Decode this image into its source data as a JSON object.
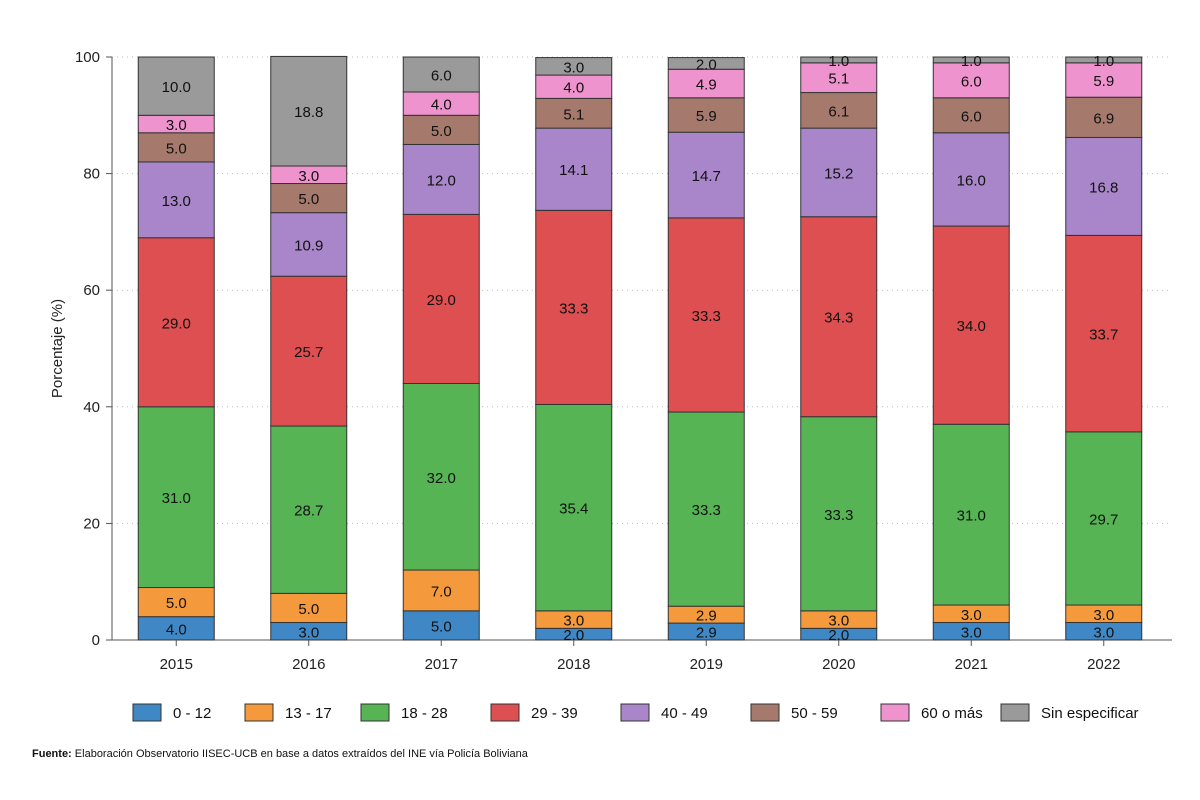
{
  "chart_data": {
    "type": "bar",
    "stacked": true,
    "categories": [
      "2015",
      "2016",
      "2017",
      "2018",
      "2019",
      "2020",
      "2021",
      "2022"
    ],
    "series": [
      {
        "name": "0 - 12",
        "color": "#3f88c5",
        "values": [
          4.0,
          3.0,
          5.0,
          2.0,
          2.9,
          2.0,
          3.0,
          3.0
        ]
      },
      {
        "name": "13 - 17",
        "color": "#f59a3c",
        "values": [
          5.0,
          5.0,
          7.0,
          3.0,
          2.9,
          3.0,
          3.0,
          3.0
        ]
      },
      {
        "name": "18 - 28",
        "color": "#56b454",
        "values": [
          31.0,
          28.7,
          32.0,
          35.4,
          33.3,
          33.3,
          31.0,
          29.7
        ]
      },
      {
        "name": "29 - 39",
        "color": "#dd4f50",
        "values": [
          29.0,
          25.7,
          29.0,
          33.3,
          33.3,
          34.3,
          34.0,
          33.7
        ]
      },
      {
        "name": "40 - 49",
        "color": "#a886c9",
        "values": [
          13.0,
          10.9,
          12.0,
          14.1,
          14.7,
          15.2,
          16.0,
          16.8
        ]
      },
      {
        "name": "50 - 59",
        "color": "#a57a6c",
        "values": [
          5.0,
          5.0,
          5.0,
          5.1,
          5.9,
          6.1,
          6.0,
          6.9
        ]
      },
      {
        "name": "60 o más",
        "color": "#ee93cd",
        "values": [
          3.0,
          3.0,
          4.0,
          4.0,
          4.9,
          5.1,
          6.0,
          5.9
        ]
      },
      {
        "name": "Sin especificar",
        "color": "#9a9a9a",
        "values": [
          10.0,
          18.8,
          6.0,
          3.0,
          2.0,
          1.0,
          1.0,
          1.0
        ]
      }
    ],
    "ylabel": "Porcentaje (%)",
    "xlabel": "",
    "title": "",
    "ylim": [
      0,
      100
    ],
    "yticks": [
      0,
      20,
      40,
      60,
      80,
      100
    ],
    "grid": "horizontal dotted",
    "legend": "bottom"
  },
  "source": {
    "label": "Fuente:",
    "text": "Elaboración Observatorio IISEC-UCB en base a datos  extraídos del INE vía Policía Boliviana"
  }
}
